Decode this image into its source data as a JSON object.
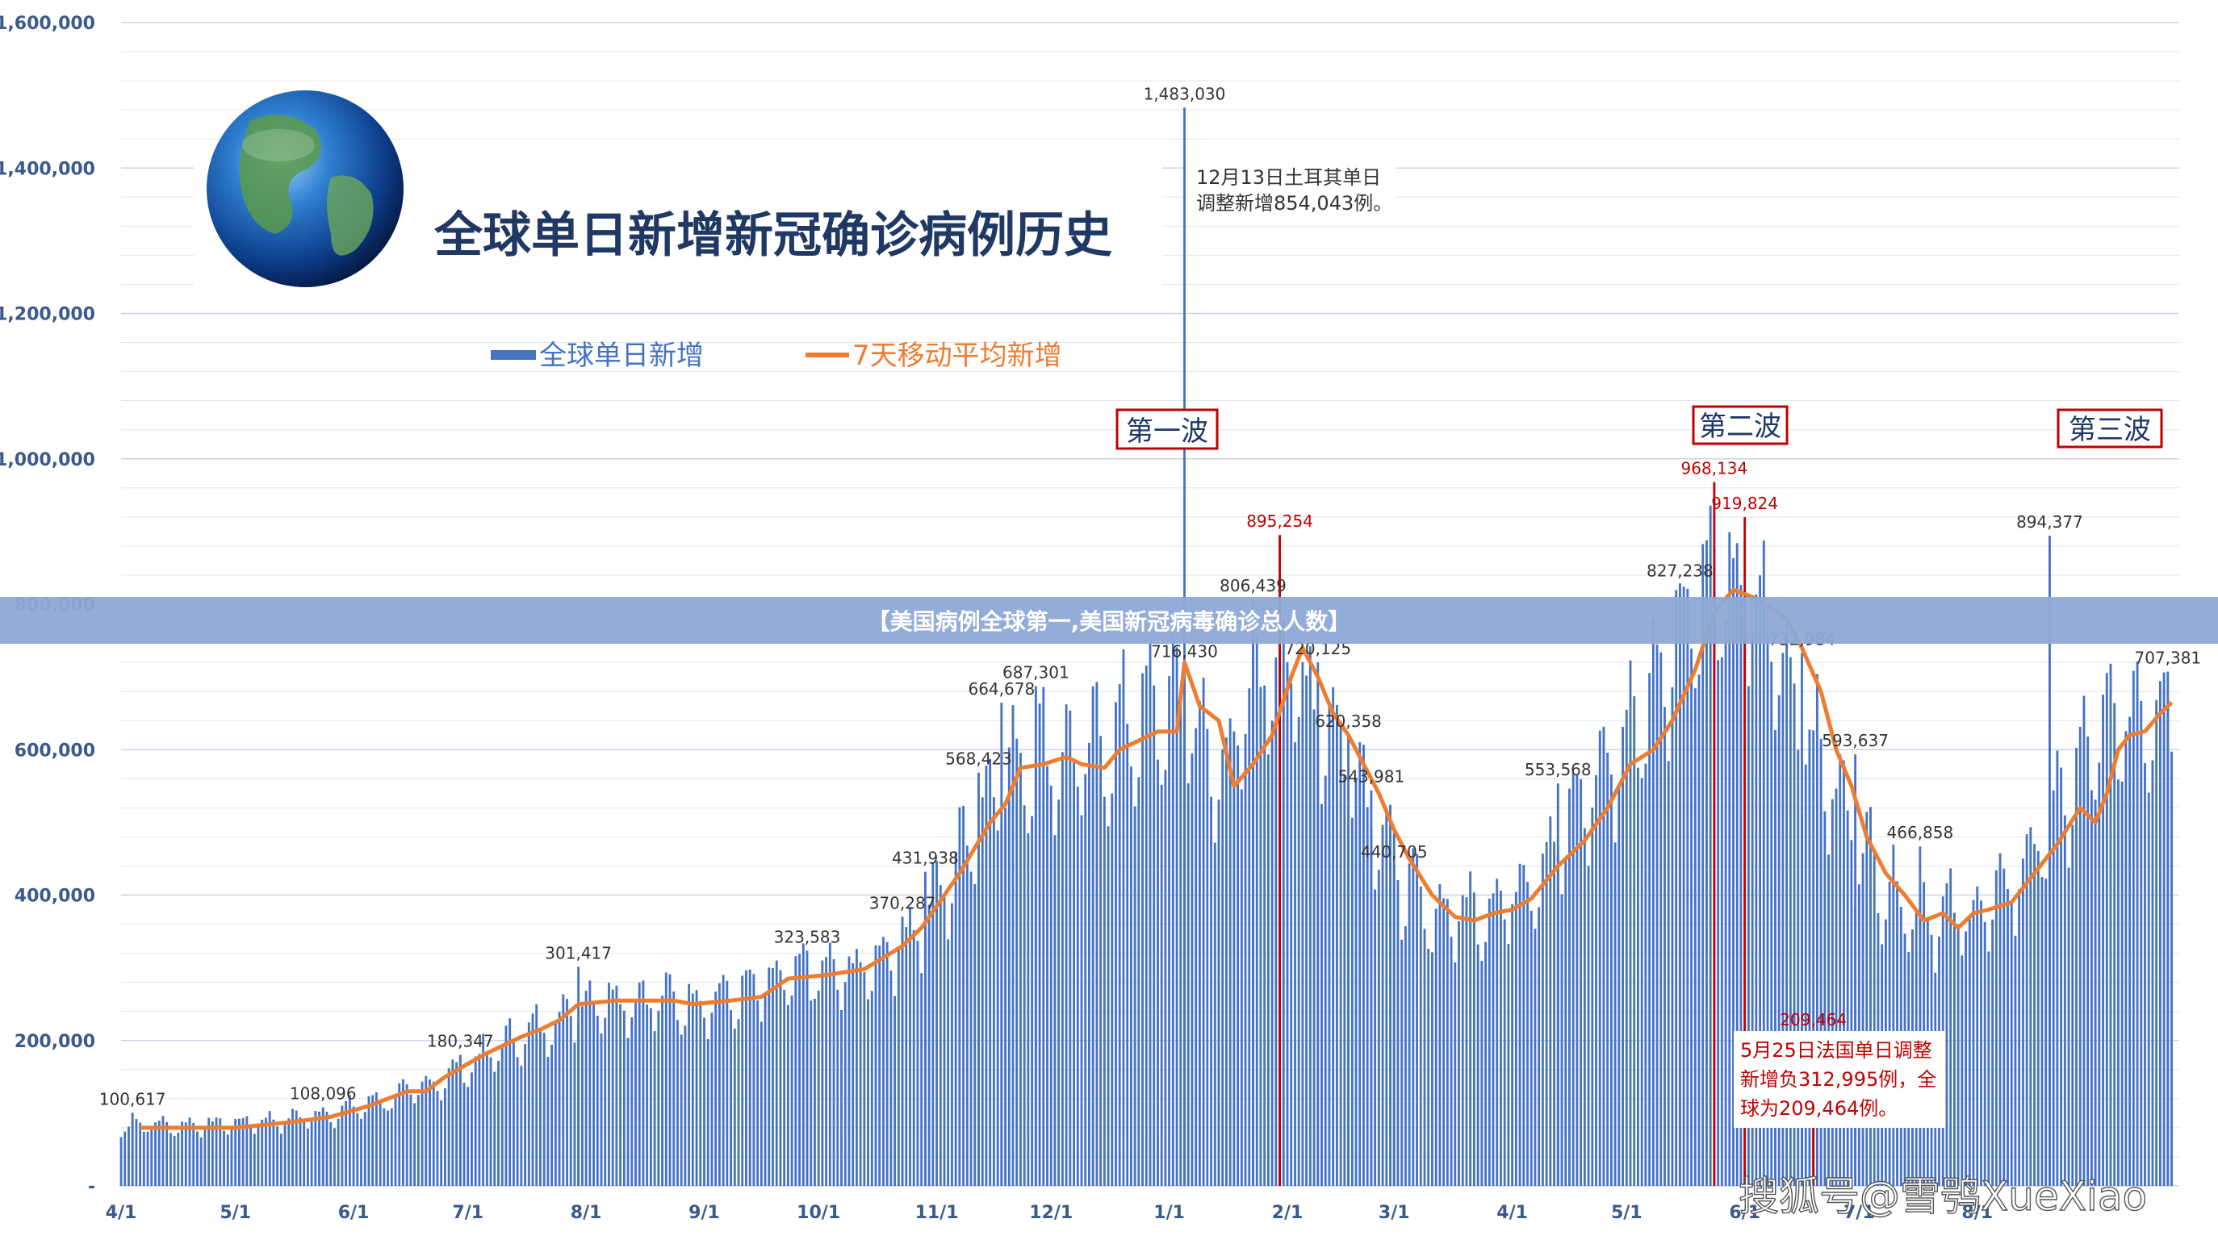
{
  "chart_data": {
    "type": "bar",
    "title": "全球单日新增新冠确诊病例历史",
    "xlabel": "",
    "ylabel": "",
    "ylim": [
      0,
      1600000
    ],
    "y_ticks": [
      "-",
      "200,000",
      "400,000",
      "600,000",
      "800,000",
      "1,000,000",
      "1,200,000",
      "1,400,000",
      "1,600,000"
    ],
    "x_ticks": [
      "4/1",
      "5/1",
      "6/1",
      "7/1",
      "8/1",
      "9/1",
      "10/1",
      "11/1",
      "12/1",
      "1/1",
      "2/1",
      "3/1",
      "4/1",
      "5/1",
      "6/1",
      "7/1",
      "8/1"
    ],
    "grid": true,
    "legend_position": "top",
    "series": [
      {
        "name": "全球单日新增",
        "type": "bar",
        "color": "#4472c4"
      },
      {
        "name": "7天移动平均新增",
        "type": "line",
        "color": "#ed7d31"
      }
    ],
    "weekly_daily_new": [
      [
        0,
        80000
      ],
      [
        7,
        85000
      ],
      [
        14,
        82000
      ],
      [
        21,
        84000
      ],
      [
        28,
        85000
      ],
      [
        35,
        88000
      ],
      [
        42,
        90000
      ],
      [
        49,
        95000
      ],
      [
        56,
        100000
      ],
      [
        63,
        110000
      ],
      [
        70,
        120000
      ],
      [
        77,
        130000
      ],
      [
        84,
        145000
      ],
      [
        91,
        165000
      ],
      [
        98,
        185000
      ],
      [
        105,
        205000
      ],
      [
        112,
        220000
      ],
      [
        119,
        245000
      ],
      [
        126,
        258000
      ],
      [
        133,
        255000
      ],
      [
        140,
        255000
      ],
      [
        147,
        252000
      ],
      [
        154,
        255000
      ],
      [
        161,
        260000
      ],
      [
        168,
        270000
      ],
      [
        175,
        282000
      ],
      [
        182,
        290000
      ],
      [
        189,
        290000
      ],
      [
        196,
        300000
      ],
      [
        203,
        330000
      ],
      [
        210,
        360000
      ],
      [
        217,
        420000
      ],
      [
        224,
        495000
      ],
      [
        231,
        565000
      ],
      [
        238,
        585000
      ],
      [
        245,
        590000
      ],
      [
        252,
        580000
      ],
      [
        259,
        610000
      ],
      [
        266,
        635000
      ],
      [
        273,
        650000
      ],
      [
        280,
        655000
      ],
      [
        287,
        560000
      ],
      [
        294,
        630000
      ],
      [
        301,
        720000
      ],
      [
        308,
        700000
      ],
      [
        315,
        640000
      ],
      [
        322,
        590000
      ],
      [
        329,
        510000
      ],
      [
        336,
        420000
      ],
      [
        343,
        370000
      ],
      [
        350,
        375000
      ],
      [
        357,
        380000
      ],
      [
        364,
        395000
      ],
      [
        371,
        430000
      ],
      [
        378,
        480000
      ],
      [
        385,
        540000
      ],
      [
        392,
        590000
      ],
      [
        399,
        650000
      ],
      [
        406,
        740000
      ],
      [
        413,
        810000
      ],
      [
        420,
        820000
      ],
      [
        427,
        800000
      ],
      [
        434,
        740000
      ],
      [
        441,
        640000
      ],
      [
        448,
        560000
      ],
      [
        455,
        480000
      ],
      [
        462,
        420000
      ],
      [
        469,
        380000
      ],
      [
        476,
        370000
      ],
      [
        483,
        370000
      ],
      [
        490,
        380000
      ],
      [
        497,
        420000
      ],
      [
        504,
        480000
      ],
      [
        511,
        540000
      ],
      [
        518,
        610000
      ],
      [
        525,
        640000
      ],
      [
        532,
        655000
      ],
      [
        538,
        660000
      ]
    ],
    "moving_average_7d": [
      [
        5,
        80000
      ],
      [
        20,
        80000
      ],
      [
        30,
        80000
      ],
      [
        45,
        88000
      ],
      [
        55,
        95000
      ],
      [
        65,
        110000
      ],
      [
        75,
        130000
      ],
      [
        80,
        130000
      ],
      [
        85,
        150000
      ],
      [
        95,
        180000
      ],
      [
        105,
        205000
      ],
      [
        110,
        215000
      ],
      [
        115,
        228000
      ],
      [
        120,
        250000
      ],
      [
        130,
        255000
      ],
      [
        145,
        255000
      ],
      [
        150,
        250000
      ],
      [
        160,
        255000
      ],
      [
        168,
        260000
      ],
      [
        175,
        285000
      ],
      [
        185,
        290000
      ],
      [
        195,
        298000
      ],
      [
        205,
        330000
      ],
      [
        210,
        355000
      ],
      [
        220,
        430000
      ],
      [
        228,
        500000
      ],
      [
        232,
        525000
      ],
      [
        236,
        575000
      ],
      [
        242,
        580000
      ],
      [
        248,
        590000
      ],
      [
        252,
        580000
      ],
      [
        258,
        575000
      ],
      [
        262,
        600000
      ],
      [
        266,
        610000
      ],
      [
        272,
        625000
      ],
      [
        277,
        625000
      ],
      [
        279,
        720000
      ],
      [
        283,
        660000
      ],
      [
        288,
        640000
      ],
      [
        292,
        550000
      ],
      [
        297,
        580000
      ],
      [
        302,
        620000
      ],
      [
        307,
        700000
      ],
      [
        310,
        740000
      ],
      [
        314,
        700000
      ],
      [
        318,
        650000
      ],
      [
        322,
        620000
      ],
      [
        326,
        580000
      ],
      [
        330,
        540000
      ],
      [
        334,
        490000
      ],
      [
        338,
        450000
      ],
      [
        344,
        400000
      ],
      [
        350,
        370000
      ],
      [
        355,
        365000
      ],
      [
        360,
        375000
      ],
      [
        365,
        380000
      ],
      [
        370,
        395000
      ],
      [
        377,
        440000
      ],
      [
        384,
        475000
      ],
      [
        390,
        520000
      ],
      [
        396,
        580000
      ],
      [
        402,
        600000
      ],
      [
        407,
        640000
      ],
      [
        413,
        710000
      ],
      [
        418,
        790000
      ],
      [
        423,
        820000
      ],
      [
        428,
        810000
      ],
      [
        433,
        795000
      ],
      [
        437,
        780000
      ],
      [
        441,
        740000
      ],
      [
        446,
        680000
      ],
      [
        450,
        600000
      ],
      [
        454,
        550000
      ],
      [
        458,
        480000
      ],
      [
        463,
        430000
      ],
      [
        468,
        400000
      ],
      [
        473,
        365000
      ],
      [
        478,
        375000
      ],
      [
        482,
        355000
      ],
      [
        486,
        375000
      ],
      [
        490,
        380000
      ],
      [
        496,
        390000
      ],
      [
        502,
        430000
      ],
      [
        508,
        470000
      ],
      [
        514,
        520000
      ],
      [
        518,
        500000
      ],
      [
        521,
        540000
      ],
      [
        524,
        600000
      ],
      [
        527,
        620000
      ],
      [
        531,
        625000
      ],
      [
        535,
        650000
      ],
      [
        538,
        665000
      ]
    ],
    "labeled_points": [
      {
        "x": 3,
        "value": 100617,
        "label": "100,617"
      },
      {
        "x": 53,
        "value": 108096,
        "label": "108,096"
      },
      {
        "x": 89,
        "value": 180347,
        "label": "180,347"
      },
      {
        "x": 120,
        "value": 301417,
        "label": "301,417"
      },
      {
        "x": 180,
        "value": 323583,
        "label": "323,583"
      },
      {
        "x": 205,
        "value": 370287,
        "label": "370,287"
      },
      {
        "x": 211,
        "value": 431938,
        "label": "431,938"
      },
      {
        "x": 225,
        "value": 568423,
        "label": "568,423"
      },
      {
        "x": 231,
        "value": 664678,
        "label": "664,678"
      },
      {
        "x": 240,
        "value": 687301,
        "label": "687,301"
      },
      {
        "x": 279,
        "value": 1483030,
        "label": "1,483,030"
      },
      {
        "x": 279,
        "value": 716430,
        "label": "716,430"
      },
      {
        "x": 297,
        "value": 806439,
        "label": "806,439"
      },
      {
        "x": 304,
        "value": 895254,
        "label": "895,254",
        "color": "#c00000"
      },
      {
        "x": 314,
        "value": 720125,
        "label": "720,125"
      },
      {
        "x": 322,
        "value": 620358,
        "label": "620,358"
      },
      {
        "x": 328,
        "value": 543981,
        "label": "543,981"
      },
      {
        "x": 334,
        "value": 440705,
        "label": "440,705"
      },
      {
        "x": 377,
        "value": 553568,
        "label": "553,568"
      },
      {
        "x": 409,
        "value": 827238,
        "label": "827,238"
      },
      {
        "x": 418,
        "value": 968134,
        "label": "968,134",
        "color": "#c00000"
      },
      {
        "x": 426,
        "value": 919824,
        "label": "919,824",
        "color": "#c00000"
      },
      {
        "x": 441,
        "value": 732984,
        "label": "732,984"
      },
      {
        "x": 455,
        "value": 593637,
        "label": "593,637"
      },
      {
        "x": 472,
        "value": 466858,
        "label": "466,858"
      },
      {
        "x": 444,
        "value": 209464,
        "label": "209,464",
        "color": "#c00000"
      },
      {
        "x": 506,
        "value": 894377,
        "label": "894,377"
      },
      {
        "x": 537,
        "value": 707381,
        "label": "707,381"
      }
    ],
    "waves": [
      "第一波",
      "第二波",
      "第三波"
    ],
    "annotations": [
      "12月13日土耳其单日\n调整新增854,043例。",
      "5月25日法国单日调整\n新增负312,995例，全\n球为209,464例。"
    ]
  },
  "legend": {
    "bars_label": "全球单日新增",
    "line_label": "7天移动平均新增"
  },
  "banner_text": "【美国病例全球第一,美国新冠病毒确诊总人数】",
  "watermark_text": "搜狐号@雪鸮XueXiao",
  "colors": {
    "bar": "#4472c4",
    "line": "#ed7d31",
    "red": "#c00000",
    "banner": "#8da9d6"
  }
}
